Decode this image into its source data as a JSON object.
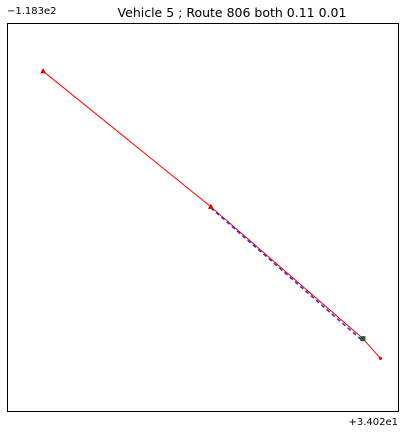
{
  "chart_data": {
    "type": "line",
    "title": "Vehicle 5 ; Route 806 both 0.11 0.01",
    "xlabel": "",
    "ylabel": "",
    "x_offset_label": "+3.402e1",
    "y_offset_label": "−1.183e2",
    "xlim": [
      0,
      1
    ],
    "ylim": [
      0,
      1
    ],
    "grid": false,
    "series": [
      {
        "color": "#ff0000",
        "marker": "small-dot",
        "x": [
          0.09,
          0.52,
          0.91,
          0.955
        ],
        "y": [
          0.878,
          0.528,
          0.187,
          0.136
        ]
      },
      {
        "color": "#4b2bcc",
        "style": "dashed",
        "x": [
          0.52,
          0.905
        ],
        "y": [
          0.525,
          0.185
        ]
      }
    ],
    "markers": [
      {
        "kind": "triangle",
        "color": "#e00000",
        "x": 0.09,
        "y": 0.878
      },
      {
        "kind": "triangle",
        "color": "#e00000",
        "x": 0.52,
        "y": 0.528
      },
      {
        "kind": "square",
        "color": "#2a5a2a",
        "x": 0.91,
        "y": 0.187
      }
    ]
  }
}
